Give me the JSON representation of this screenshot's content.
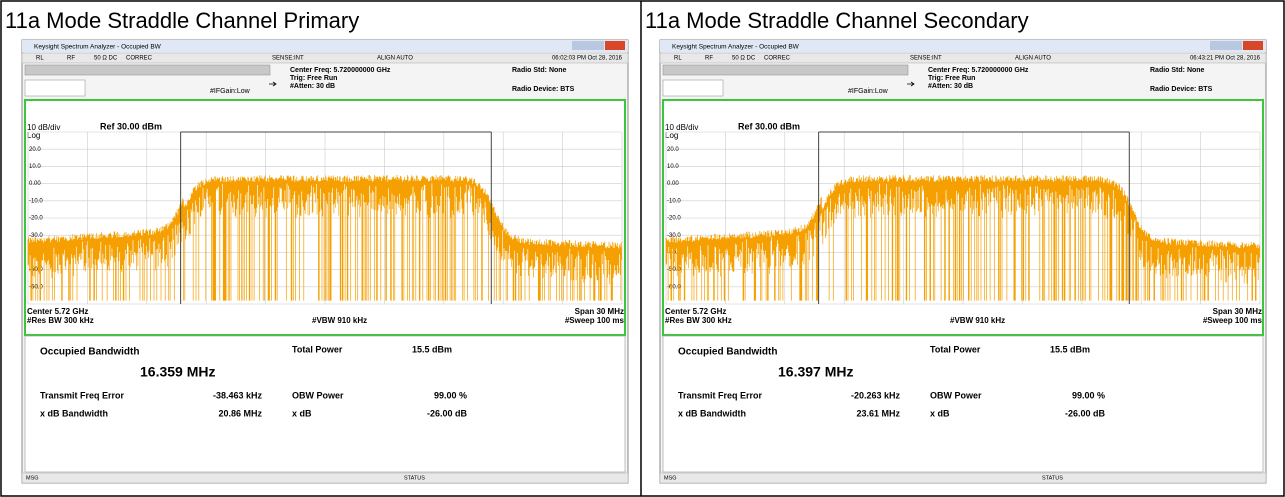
{
  "panels": [
    {
      "caption": "11a Mode Straddle Channel Primary",
      "window_title": "Keysight Spectrum Analyzer - Occupied BW",
      "status_bar": [
        "RL",
        "RF",
        "50 Ω  DC",
        "CORREC",
        "SENSE:INT",
        "ALIGN AUTO",
        "06:02:03 PM Oct 28, 2016"
      ],
      "settings": {
        "center_freq": "Center Freq: 5.720000000 GHz",
        "trig": "Trig: Free Run",
        "atten": "#Atten: 30 dB",
        "if_gain": "#IFGain:Low",
        "radio_std": "Radio Std: None",
        "radio_device": "Radio Device: BTS"
      },
      "graph": {
        "scale": "10 dB/div",
        "ref": "Ref 30.00 dBm",
        "log": "Log",
        "y_labels": [
          "20.0",
          "10.0",
          "0.00",
          "-10.0",
          "-20.0",
          "-30.0",
          "-40.0",
          "-50.0",
          "-60.0"
        ],
        "center": "Center 5.72 GHz",
        "res_bw": "#Res BW 300 kHz",
        "vbw": "#VBW 910 kHz",
        "span": "Span 30 MHz",
        "sweep": "#Sweep 100 ms"
      },
      "results": {
        "obw_label": "Occupied Bandwidth",
        "obw_value": "16.359 MHz",
        "total_power_label": "Total Power",
        "total_power_value": "15.5 dBm",
        "tfe_label": "Transmit Freq Error",
        "tfe_value": "-38.463 kHz",
        "obw_power_label": "OBW Power",
        "obw_power_value": "99.00 %",
        "xdb_bw_label": "x dB Bandwidth",
        "xdb_bw_value": "20.86 MHz",
        "xdb_label": "x dB",
        "xdb_value": "-26.00 dB"
      },
      "footer": {
        "msg": "MSG",
        "status": "STATUS"
      }
    },
    {
      "caption": "11a Mode Straddle Channel Secondary",
      "window_title": "Keysight Spectrum Analyzer - Occupied BW",
      "status_bar": [
        "RL",
        "RF",
        "50 Ω  DC",
        "CORREC",
        "SENSE:INT",
        "ALIGN AUTO",
        "06:43:21 PM Oct 28, 2016"
      ],
      "settings": {
        "center_freq": "Center Freq: 5.720000000 GHz",
        "trig": "Trig: Free Run",
        "atten": "#Atten: 30 dB",
        "if_gain": "#IFGain:Low",
        "radio_std": "Radio Std: None",
        "radio_device": "Radio Device: BTS"
      },
      "graph": {
        "scale": "10 dB/div",
        "ref": "Ref 30.00 dBm",
        "log": "Log",
        "y_labels": [
          "20.0",
          "10.0",
          "0.00",
          "-10.0",
          "-20.0",
          "-30.0",
          "-40.0",
          "-50.0",
          "-60.0"
        ],
        "center": "Center 5.72 GHz",
        "res_bw": "#Res BW 300 kHz",
        "vbw": "#VBW 910 kHz",
        "span": "Span 30 MHz",
        "sweep": "#Sweep 100 ms"
      },
      "results": {
        "obw_label": "Occupied Bandwidth",
        "obw_value": "16.397 MHz",
        "total_power_label": "Total Power",
        "total_power_value": "15.5 dBm",
        "tfe_label": "Transmit Freq Error",
        "tfe_value": "-20.263 kHz",
        "obw_power_label": "OBW Power",
        "obw_power_value": "99.00 %",
        "xdb_bw_label": "x dB Bandwidth",
        "xdb_bw_value": "23.61 MHz",
        "xdb_label": "x dB",
        "xdb_value": "-26.00 dB"
      },
      "footer": {
        "msg": "MSG",
        "status": "STATUS"
      }
    }
  ]
}
